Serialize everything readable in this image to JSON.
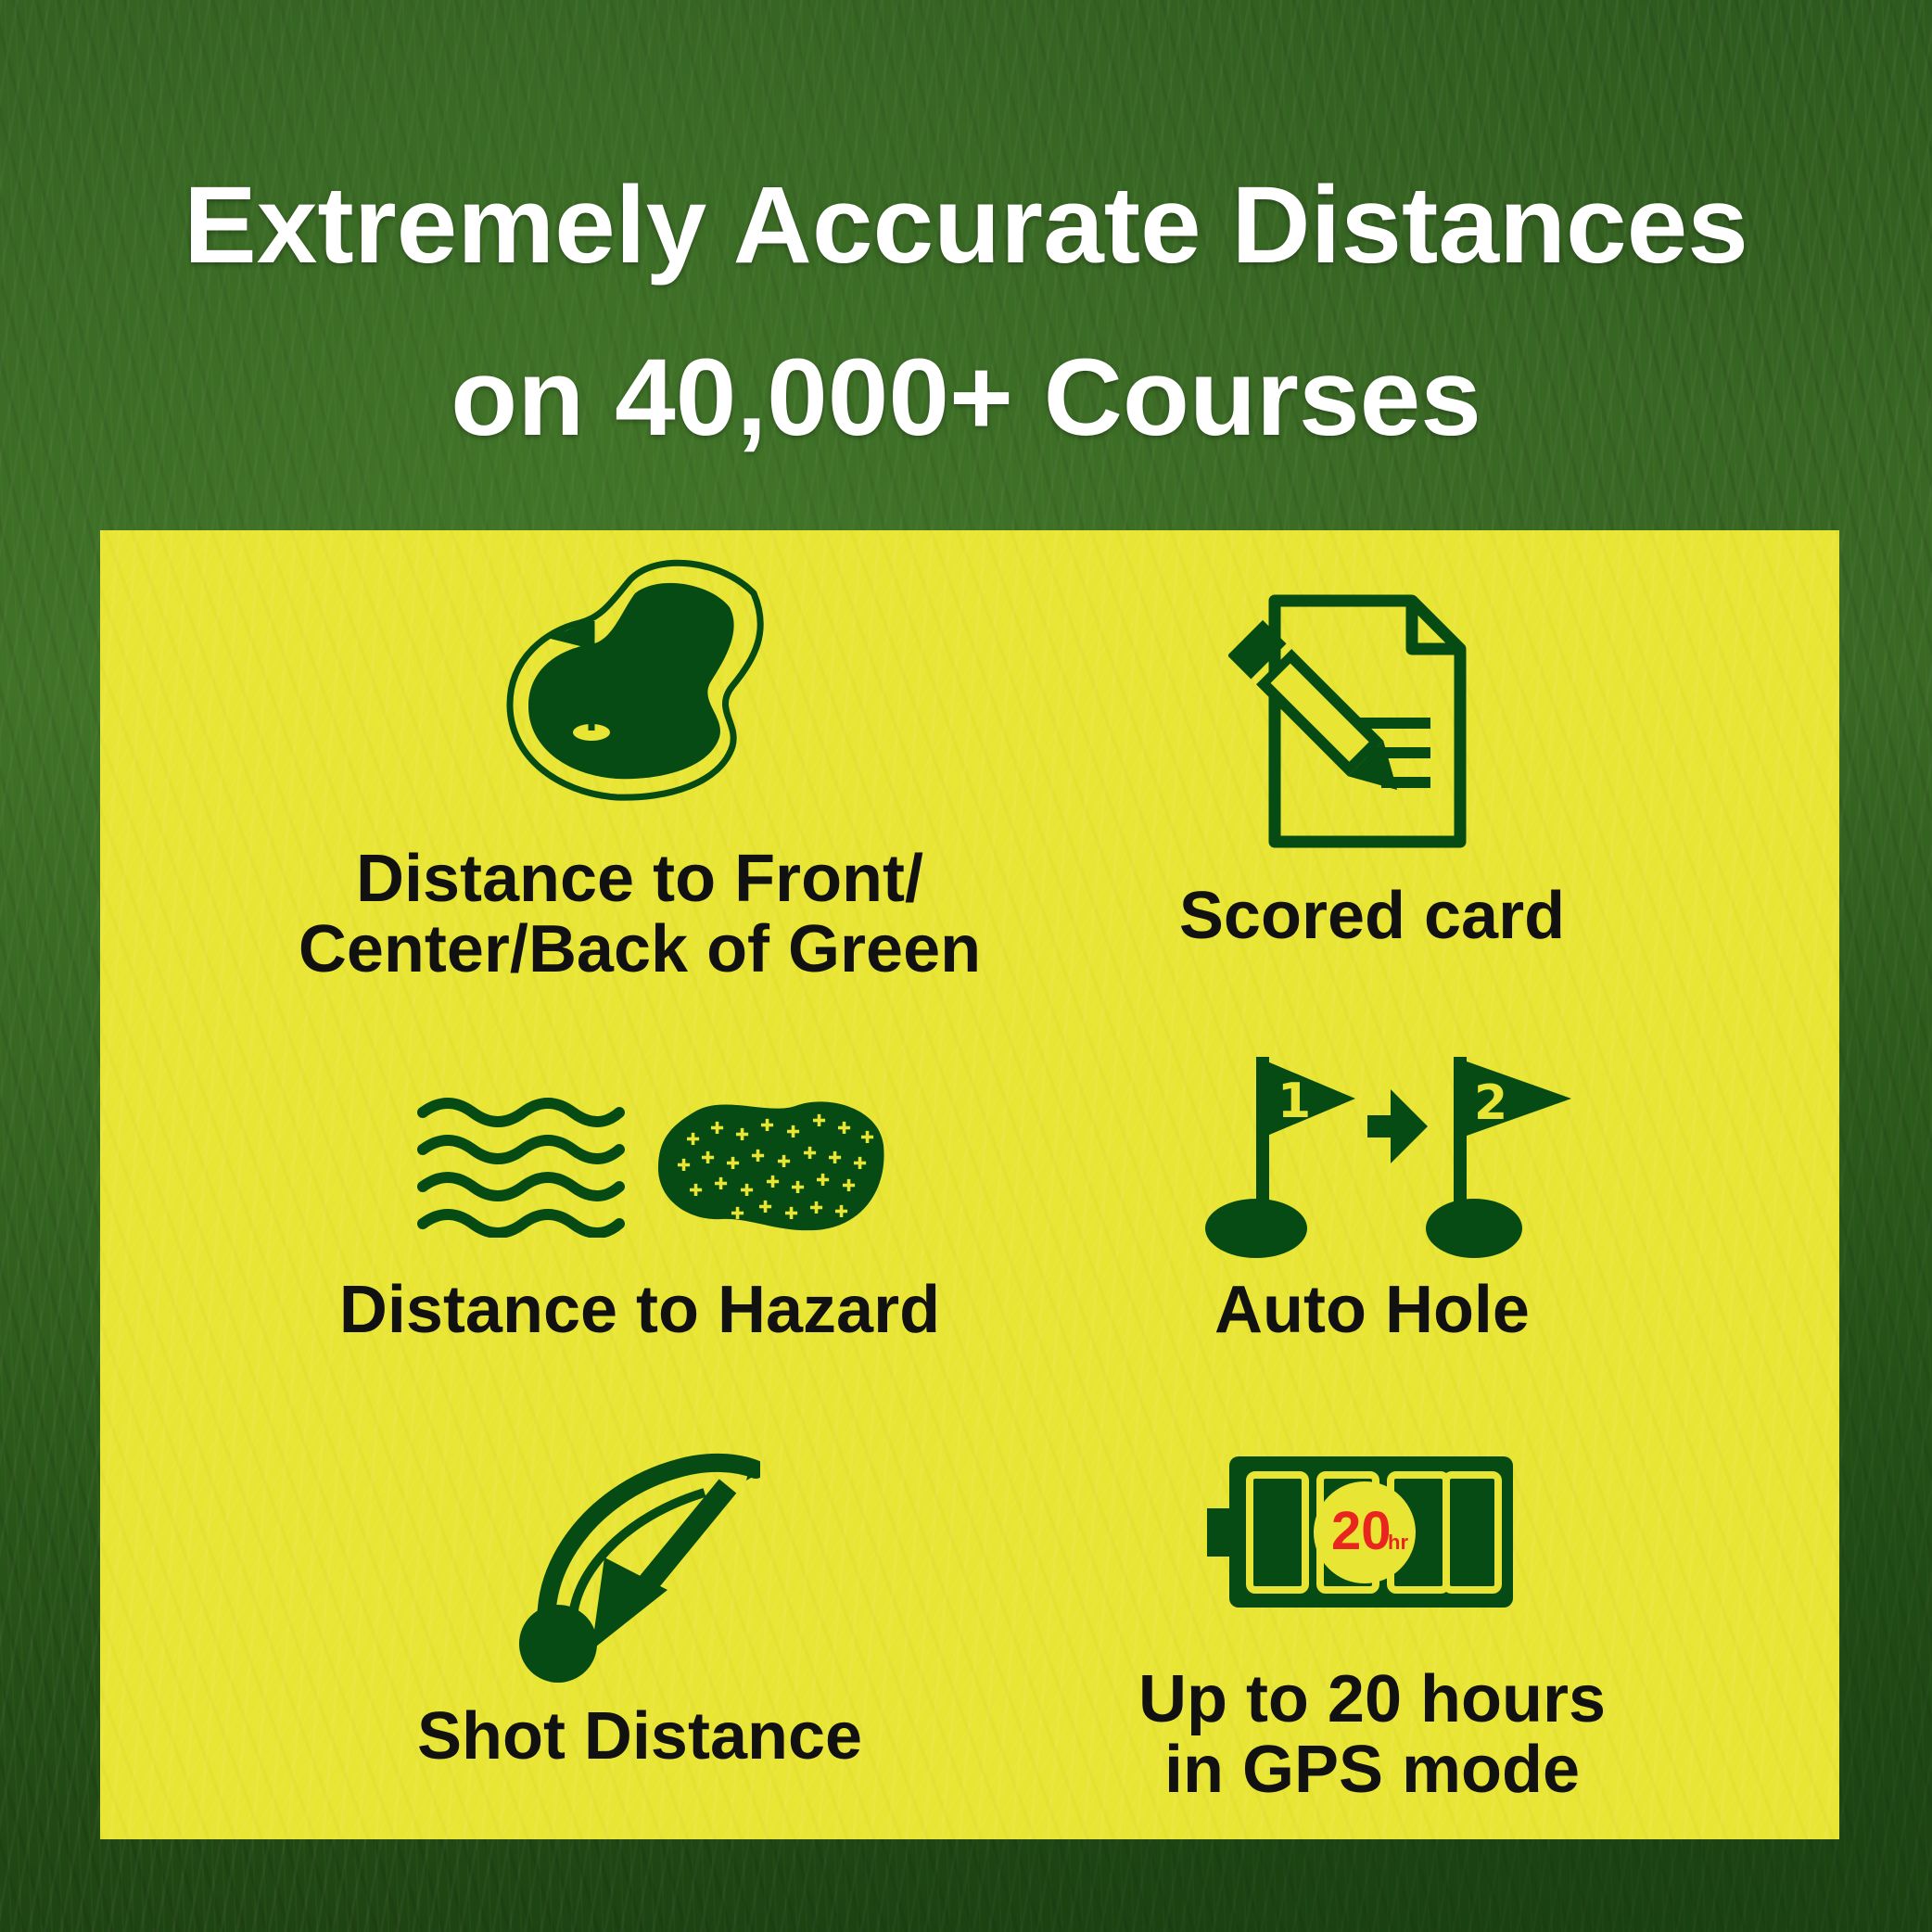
{
  "title": {
    "line1": "Extremely Accurate Distances",
    "line2": "on 40,000+ Courses"
  },
  "colors": {
    "icon_green": "#064a14",
    "panel_yellow": "#e9e534",
    "title_white": "#ffffff",
    "battery_badge_red": "#e8251f"
  },
  "features": [
    {
      "icon": "golf-green-icon",
      "label_line1": "Distance to Front/",
      "label_line2": "Center/Back of Green"
    },
    {
      "icon": "scorecard-pencil-icon",
      "label_line1": "Scored card"
    },
    {
      "icon": "hazard-water-bunker-icon",
      "label_line1": "Distance to Hazard"
    },
    {
      "icon": "auto-hole-flags-icon",
      "label_line1": "Auto Hole",
      "flag1": "1",
      "flag2": "2"
    },
    {
      "icon": "shot-distance-icon",
      "label_line1": "Shot Distance"
    },
    {
      "icon": "battery-icon",
      "label_line1": "Up to 20 hours",
      "label_line2": "in GPS mode",
      "badge_number": "20",
      "badge_unit": "hr"
    }
  ]
}
